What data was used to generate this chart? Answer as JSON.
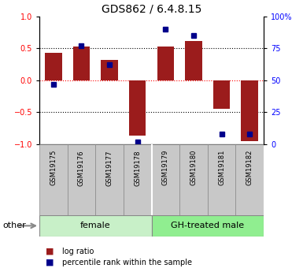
{
  "title": "GDS862 / 6.4.8.15",
  "samples": [
    "GSM19175",
    "GSM19176",
    "GSM19177",
    "GSM19178",
    "GSM19179",
    "GSM19180",
    "GSM19181",
    "GSM19182"
  ],
  "log_ratio": [
    0.43,
    0.53,
    0.32,
    -0.87,
    0.53,
    0.62,
    -0.45,
    -0.95
  ],
  "percentile_rank": [
    0.47,
    0.77,
    0.62,
    0.02,
    0.9,
    0.85,
    0.08,
    0.08
  ],
  "groups": [
    {
      "label": "female",
      "start": 0,
      "end": 4,
      "color_light": "#c8f0c8",
      "color_dark": "#90EE90"
    },
    {
      "label": "GH-treated male",
      "start": 4,
      "end": 8,
      "color_light": "#90EE90",
      "color_dark": "#90EE90"
    }
  ],
  "bar_color": "#9B1C1C",
  "dot_color": "#00008B",
  "sample_box_color": "#C8C8C8",
  "ylim_left": [
    -1,
    1
  ],
  "ylim_right": [
    0,
    100
  ],
  "yticks_left": [
    -1,
    -0.5,
    0,
    0.5,
    1
  ],
  "yticks_right": [
    0,
    25,
    50,
    75,
    100
  ],
  "hlines": [
    [
      -0.5,
      "black",
      ":"
    ],
    [
      0.0,
      "red",
      ":"
    ],
    [
      0.5,
      "black",
      ":"
    ]
  ],
  "other_label": "other",
  "legend_items": [
    "log ratio",
    "percentile rank within the sample"
  ],
  "title_fontsize": 10,
  "tick_fontsize": 7,
  "sample_fontsize": 6,
  "group_fontsize": 8,
  "legend_fontsize": 7
}
